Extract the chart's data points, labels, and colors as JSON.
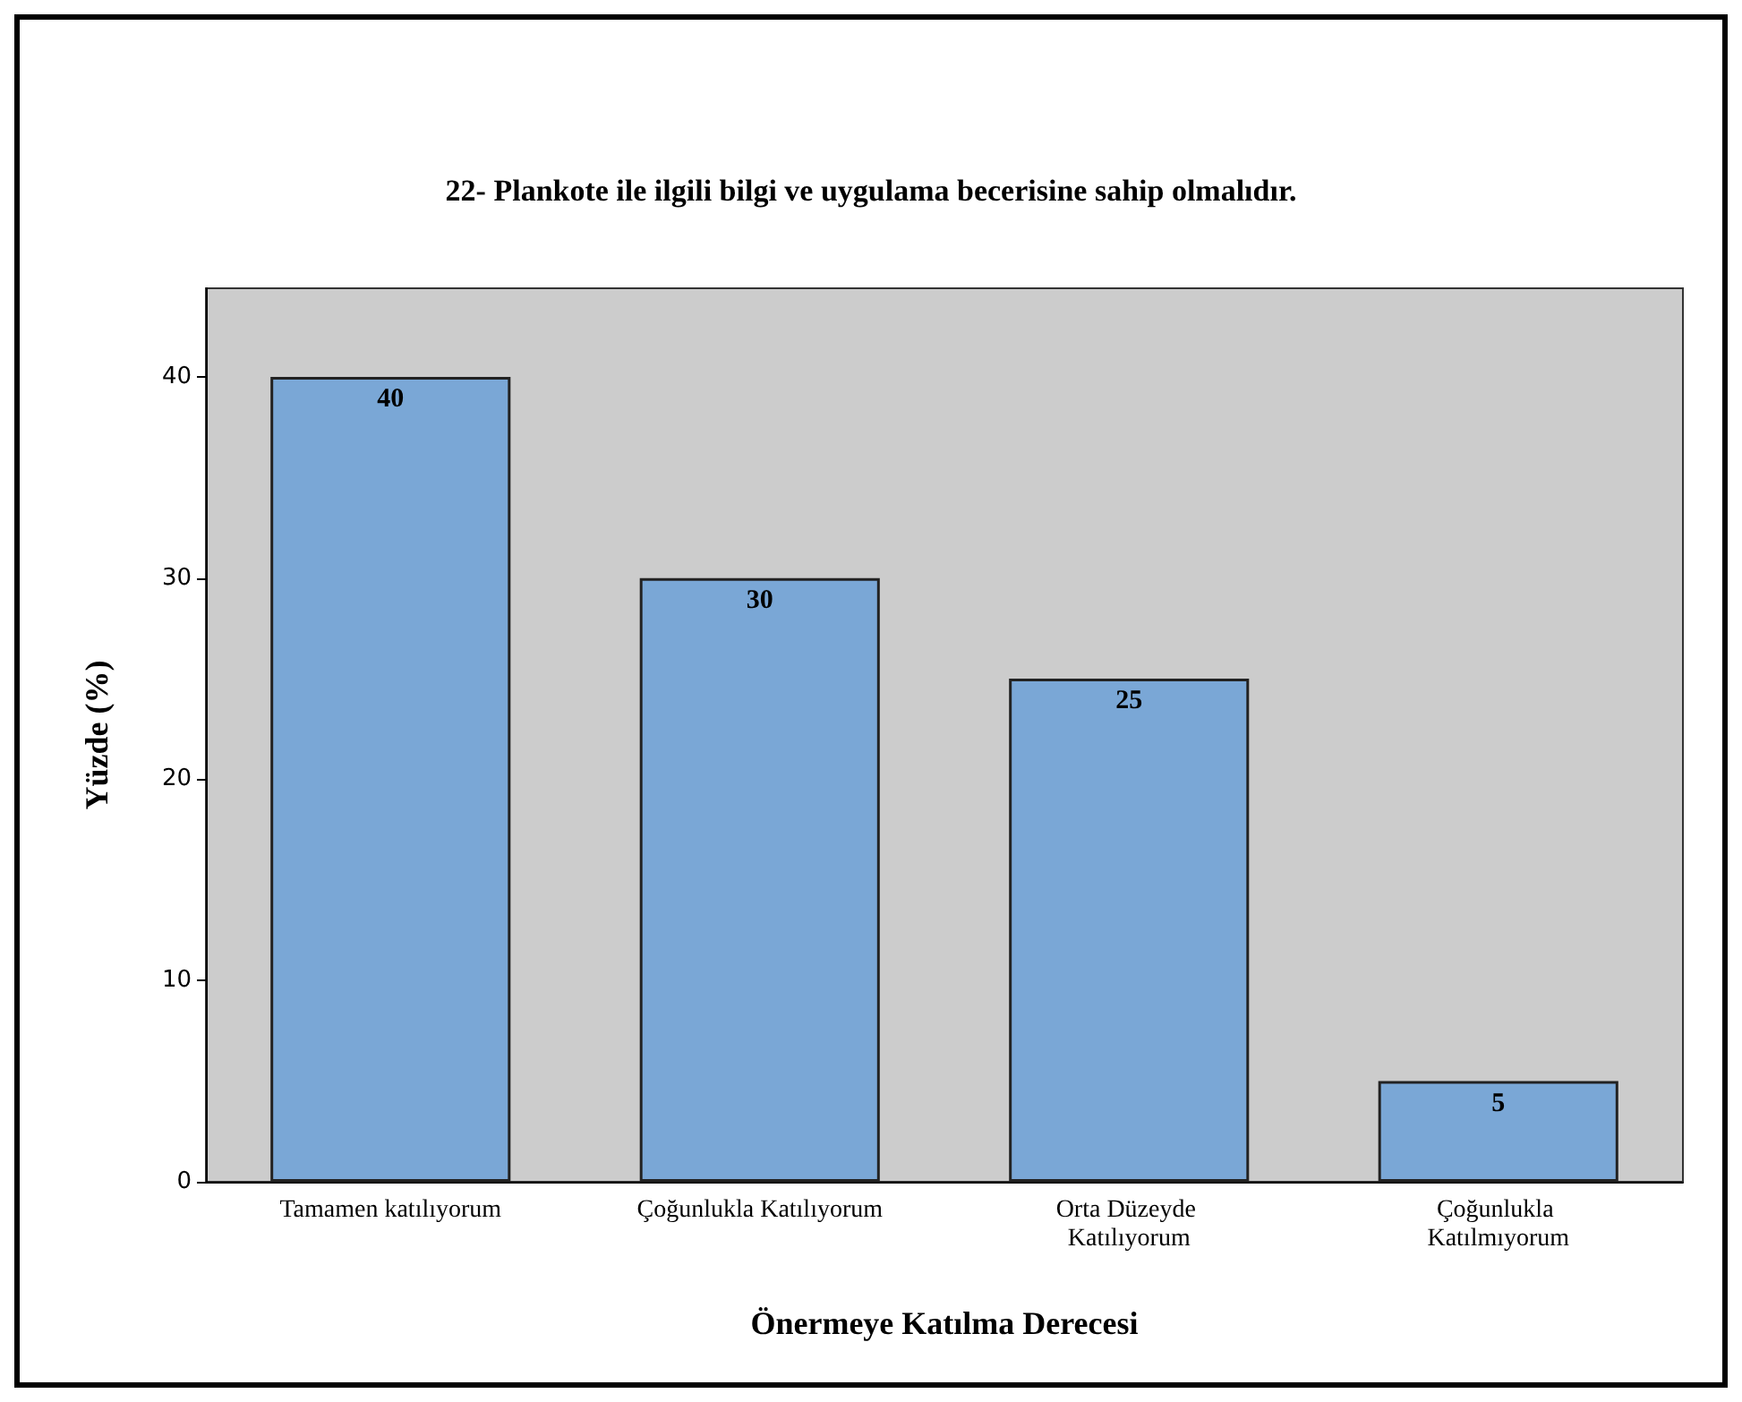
{
  "chart_data": {
    "type": "bar",
    "title": "22- Plankote ile ilgili bilgi ve uygulama becerisine sahip olmalıdır.",
    "xlabel": "Önermeye Katılma Derecesi",
    "ylabel": "Yüzde (%)",
    "categories": [
      "Tamamen katılıyorum",
      "Çoğunlukla Katılıyorum",
      "Orta Düzeyde Katılıyorum",
      "Çoğunlukla Katılmıyorum"
    ],
    "values": [
      40,
      30,
      25,
      5
    ],
    "color": "#7aa7d6",
    "data_labels": true,
    "ylim": [
      0,
      44.4
    ],
    "yticks": [
      0,
      10,
      20,
      30,
      40
    ]
  }
}
